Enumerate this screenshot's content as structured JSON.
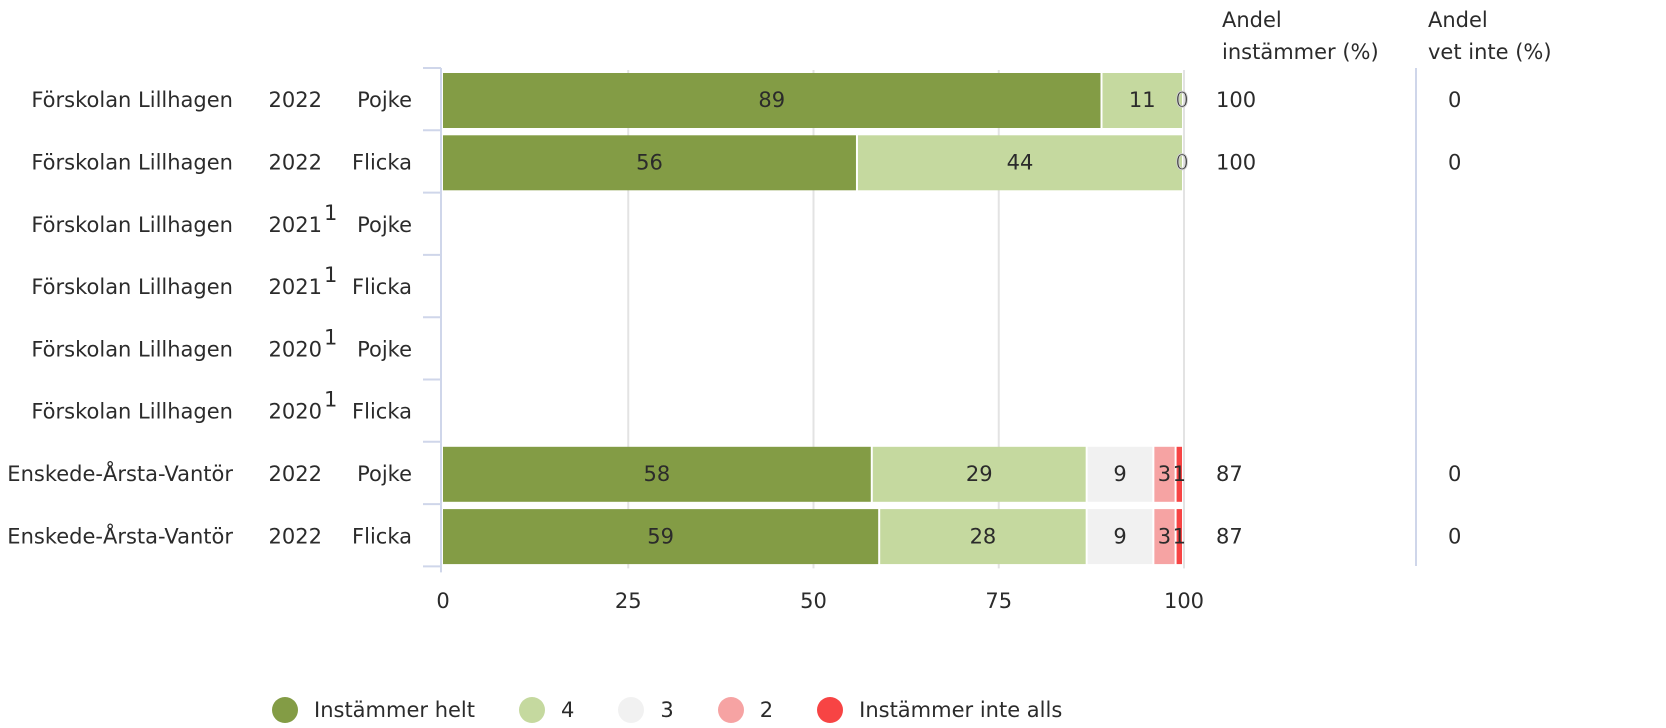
{
  "header": {
    "pct_agree": [
      "Andel",
      "instämmer (%)"
    ],
    "pct_dont_know": [
      "Andel",
      "vet inte (%)"
    ]
  },
  "colors": {
    "level5": "#839c45",
    "level4": "#c5d99f",
    "level3": "#f1f1f1",
    "level2": "#f6a3a3",
    "level1": "#f74444"
  },
  "chart_data": {
    "type": "bar",
    "orientation": "horizontal",
    "stacked": true,
    "xlim": [
      0,
      100
    ],
    "xticks": [
      "0",
      "25",
      "50",
      "75",
      "100"
    ],
    "grid": true,
    "legend_position": "bottom",
    "rows": [
      {
        "unit": "Förskolan Lillhagen",
        "year": "2022",
        "footnote": "",
        "gender": "Pojke",
        "values": [
          89,
          11,
          0,
          null,
          null
        ],
        "pct_agree": "100",
        "pct_dont_know": "0"
      },
      {
        "unit": "Förskolan Lillhagen",
        "year": "2022",
        "footnote": "",
        "gender": "Flicka",
        "values": [
          56,
          44,
          0,
          null,
          null
        ],
        "pct_agree": "100",
        "pct_dont_know": "0"
      },
      {
        "unit": "Förskolan Lillhagen",
        "year": "2021",
        "footnote": "1",
        "gender": "Pojke",
        "values": null,
        "pct_agree": "",
        "pct_dont_know": ""
      },
      {
        "unit": "Förskolan Lillhagen",
        "year": "2021",
        "footnote": "1",
        "gender": "Flicka",
        "values": null,
        "pct_agree": "",
        "pct_dont_know": ""
      },
      {
        "unit": "Förskolan Lillhagen",
        "year": "2020",
        "footnote": "1",
        "gender": "Pojke",
        "values": null,
        "pct_agree": "",
        "pct_dont_know": ""
      },
      {
        "unit": "Förskolan Lillhagen",
        "year": "2020",
        "footnote": "1",
        "gender": "Flicka",
        "values": null,
        "pct_agree": "",
        "pct_dont_know": ""
      },
      {
        "unit": "Enskede-Årsta-Vantör",
        "year": "2022",
        "footnote": "",
        "gender": "Pojke",
        "values": [
          58,
          29,
          9,
          3,
          1
        ],
        "pct_agree": "87",
        "pct_dont_know": "0"
      },
      {
        "unit": "Enskede-Årsta-Vantör",
        "year": "2022",
        "footnote": "",
        "gender": "Flicka",
        "values": [
          59,
          28,
          9,
          3,
          1
        ],
        "pct_agree": "87",
        "pct_dont_know": "0"
      }
    ],
    "series": [
      {
        "name": "Instämmer helt",
        "color": "#839c45",
        "label_color": "#ffffff"
      },
      {
        "name": "4",
        "color": "#c5d99f",
        "label_color": "#ffffff"
      },
      {
        "name": "3",
        "color": "#f1f1f1",
        "label_color": "#111111"
      },
      {
        "name": "2",
        "color": "#f6a3a3",
        "label_color": "#111111"
      },
      {
        "name": "Instämmer inte alls",
        "color": "#f74444",
        "label_color": "#ffffff"
      }
    ]
  }
}
